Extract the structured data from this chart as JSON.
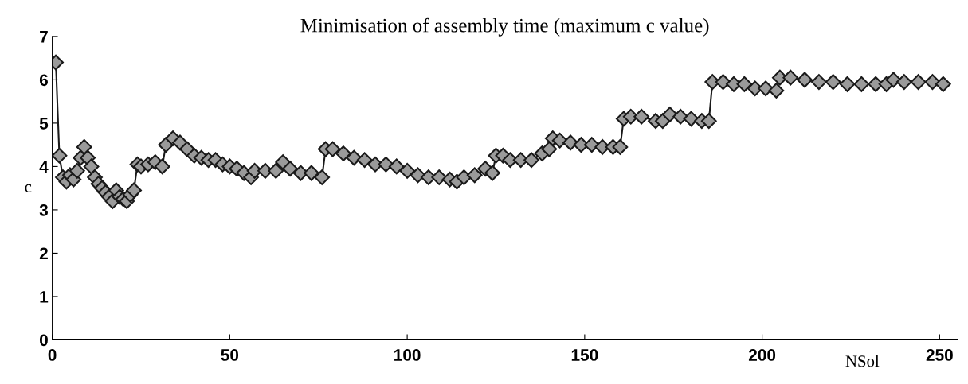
{
  "chart_data": {
    "type": "line",
    "title": "Minimisation of assembly time (maximum c value)",
    "xlabel": "NSol",
    "ylabel": "c",
    "xlim": [
      0,
      255
    ],
    "xticks": [
      0,
      50,
      100,
      150,
      200,
      250
    ],
    "ylim": [
      0,
      7
    ],
    "yticks": [
      0,
      1,
      2,
      3,
      4,
      5,
      6,
      7
    ],
    "grid": false,
    "legend": false,
    "marker": "diamond",
    "line_style": "solid",
    "series": [
      {
        "color": "#1a1a1a",
        "x": [
          1,
          2,
          3,
          4,
          5,
          6,
          7,
          8,
          9,
          10,
          11,
          12,
          13,
          14,
          15,
          16,
          17,
          18,
          19,
          20,
          21,
          22,
          23,
          24,
          25,
          27,
          29,
          31,
          32,
          34,
          36,
          38,
          40,
          42,
          44,
          46,
          48,
          50,
          52,
          54,
          56,
          57,
          60,
          63,
          65,
          67,
          70,
          73,
          76,
          77,
          79,
          82,
          85,
          88,
          91,
          94,
          97,
          100,
          103,
          106,
          109,
          112,
          114,
          116,
          119,
          122,
          124,
          125,
          127,
          129,
          132,
          135,
          138,
          140,
          141,
          143,
          146,
          149,
          152,
          155,
          158,
          160,
          161,
          163,
          166,
          170,
          172,
          174,
          177,
          180,
          183,
          185,
          186,
          189,
          192,
          195,
          198,
          201,
          204,
          205,
          208,
          212,
          216,
          220,
          224,
          228,
          232,
          235,
          237,
          240,
          244,
          248,
          251
        ],
        "values": [
          6.4,
          4.25,
          3.75,
          3.65,
          3.8,
          3.7,
          3.9,
          4.2,
          4.45,
          4.2,
          4.0,
          3.75,
          3.6,
          3.5,
          3.4,
          3.3,
          3.2,
          3.45,
          3.3,
          3.25,
          3.2,
          3.35,
          3.45,
          4.05,
          4.0,
          4.05,
          4.1,
          4.0,
          4.5,
          4.65,
          4.55,
          4.4,
          4.25,
          4.2,
          4.15,
          4.15,
          4.05,
          4.0,
          3.95,
          3.85,
          3.75,
          3.9,
          3.9,
          3.9,
          4.1,
          3.95,
          3.85,
          3.85,
          3.75,
          4.4,
          4.4,
          4.3,
          4.2,
          4.15,
          4.05,
          4.05,
          4.0,
          3.9,
          3.8,
          3.75,
          3.75,
          3.7,
          3.65,
          3.75,
          3.8,
          3.95,
          3.85,
          4.25,
          4.25,
          4.15,
          4.15,
          4.15,
          4.3,
          4.4,
          4.65,
          4.6,
          4.55,
          4.5,
          4.5,
          4.45,
          4.45,
          4.45,
          5.1,
          5.15,
          5.15,
          5.05,
          5.05,
          5.2,
          5.15,
          5.1,
          5.05,
          5.05,
          5.95,
          5.95,
          5.9,
          5.9,
          5.8,
          5.8,
          5.75,
          6.05,
          6.05,
          6.0,
          5.95,
          5.95,
          5.9,
          5.9,
          5.9,
          5.9,
          6.0,
          5.95,
          5.95,
          5.95,
          5.9
        ]
      }
    ]
  }
}
